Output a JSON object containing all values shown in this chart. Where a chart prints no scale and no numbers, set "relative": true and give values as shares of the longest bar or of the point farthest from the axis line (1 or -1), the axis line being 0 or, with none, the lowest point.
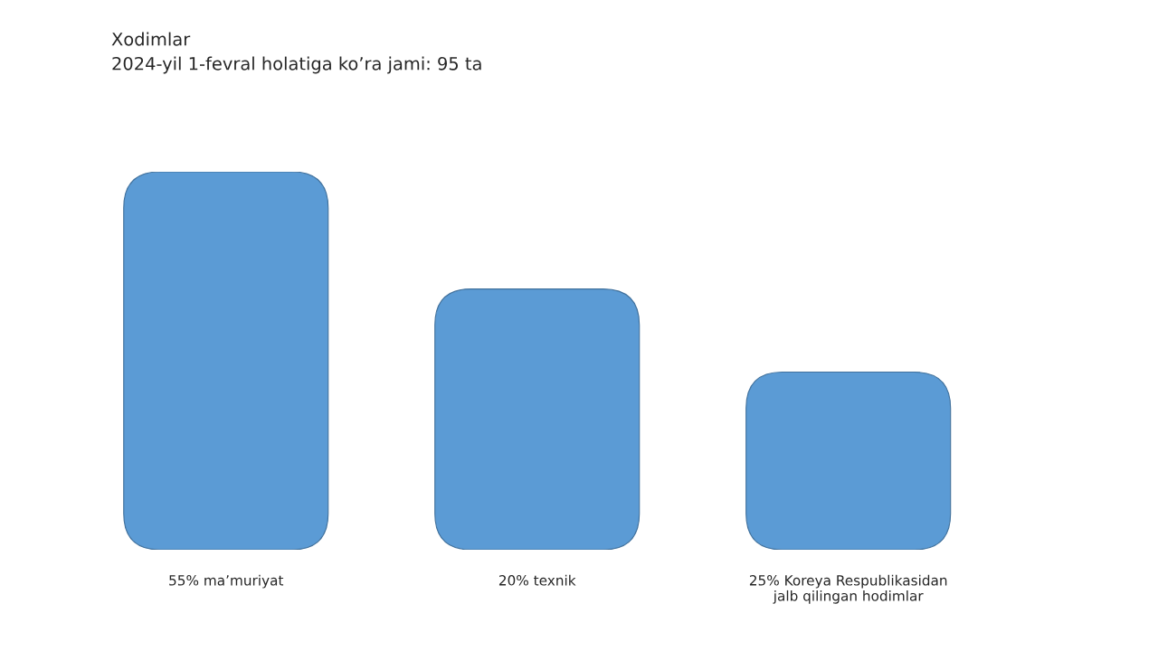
{
  "chart_data": {
    "type": "bar",
    "title": "Xodimlar",
    "subtitle": "2024-yil 1-fevral holatiga ko’ra jami: 95 ta",
    "categories": [
      "55% ma’muriyat",
      "20% texnik",
      "25% Koreya Respublikasidan\njalb qilingan hodimlar"
    ],
    "values": [
      1,
      0.69,
      0.47
    ],
    "color": "#5b9bd5",
    "relative": true,
    "grid": false,
    "legend": false
  }
}
